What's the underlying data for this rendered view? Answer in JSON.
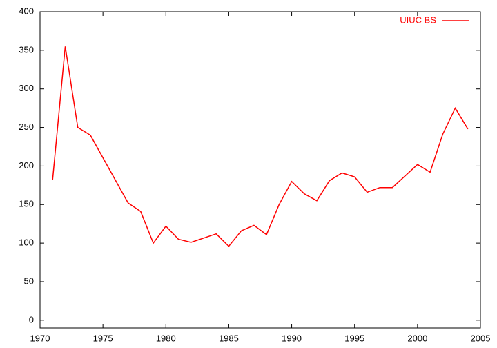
{
  "chart_data": {
    "type": "line",
    "x": [
      1971,
      1972,
      1973,
      1974,
      1977,
      1978,
      1979,
      1980,
      1981,
      1982,
      1984,
      1985,
      1986,
      1987,
      1988,
      1989,
      1990,
      1991,
      1992,
      1993,
      1994,
      1995,
      1996,
      1997,
      1998,
      2000,
      2001,
      2002,
      2003,
      2004
    ],
    "series": [
      {
        "name": "UIUC BS",
        "color": "#ff0000",
        "values": [
          182,
          355,
          250,
          240,
          152,
          141,
          100,
          122,
          105,
          101,
          112,
          96,
          116,
          123,
          111,
          150,
          180,
          164,
          155,
          181,
          191,
          186,
          166,
          172,
          172,
          202,
          192,
          241,
          275,
          248
        ]
      }
    ],
    "xlim": [
      1970,
      2005
    ],
    "xticks": [
      1970,
      1975,
      1980,
      1985,
      1990,
      1995,
      2000,
      2005
    ],
    "ylim": [
      -10,
      400
    ],
    "yticks": [
      0,
      50,
      100,
      150,
      200,
      250,
      300,
      350,
      400
    ],
    "grid": false,
    "legend": "top-right"
  }
}
